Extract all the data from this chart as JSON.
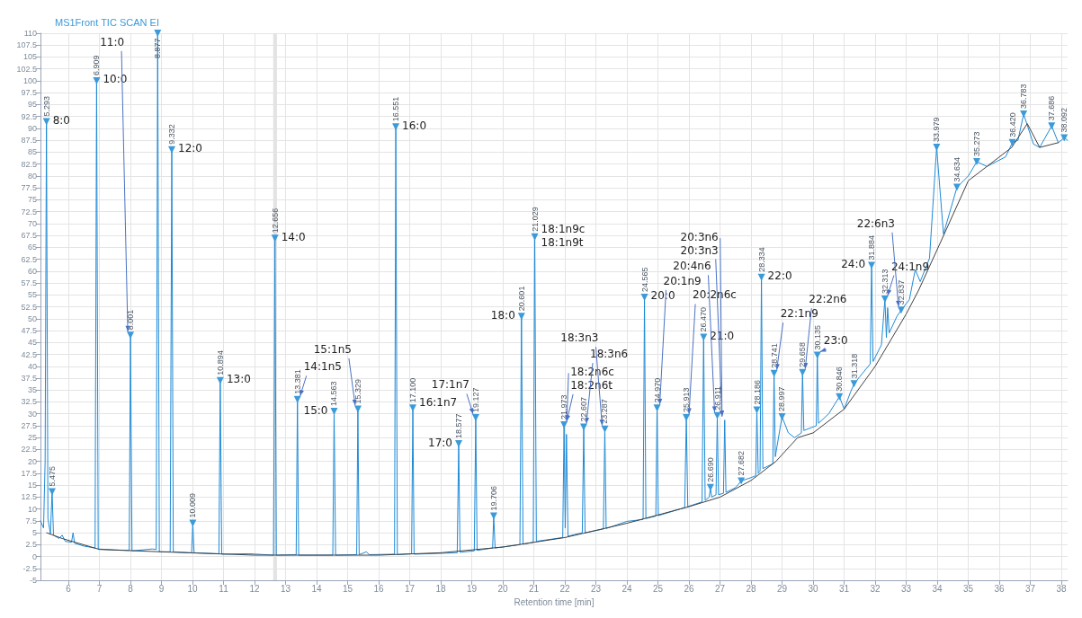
{
  "chart_data": {
    "type": "line",
    "title": "MS1Front TIC SCAN EI",
    "xlabel": "Retention time [min]",
    "xlim": [
      5.1,
      38.2
    ],
    "xticks": [
      6,
      7,
      8,
      9,
      10,
      11,
      12,
      13,
      14,
      15,
      16,
      17,
      18,
      19,
      20,
      21,
      22,
      23,
      24,
      25,
      26,
      27,
      28,
      29,
      30,
      31,
      32,
      33,
      34,
      35,
      36,
      37,
      38
    ],
    "ylim": [
      -5,
      110
    ],
    "yticks": [
      -5,
      -2.5,
      0,
      2.5,
      5,
      7.5,
      10,
      12.5,
      15,
      17.5,
      20,
      22.5,
      25,
      27.5,
      30,
      32.5,
      35,
      37.5,
      40,
      42.5,
      45,
      47.5,
      50,
      52.5,
      55,
      57.5,
      60,
      62.5,
      65,
      67.5,
      70,
      72.5,
      75,
      77.5,
      80,
      82.5,
      85,
      87.5,
      90,
      92.5,
      95,
      97.5,
      100,
      102.5,
      105,
      107.5,
      110
    ],
    "grid": true,
    "bands": [
      {
        "axis": "x",
        "from": 12.6,
        "to": 12.72,
        "color": "#e3e3e3"
      }
    ],
    "series": [
      {
        "color": "#1f8ad6",
        "marker": "none",
        "x": [
          5.1,
          5.2,
          5.25,
          5.293,
          5.34,
          5.42,
          5.475,
          5.52,
          5.7,
          5.8,
          5.9,
          6.1,
          6.15,
          6.2,
          6.5,
          6.86,
          6.909,
          6.96,
          7.5,
          7.96,
          8.001,
          8.05,
          8.7,
          8.83,
          8.877,
          8.93,
          9.28,
          9.332,
          9.38,
          9.97,
          10.009,
          10.05,
          10.85,
          10.894,
          10.94,
          11.8,
          12.61,
          12.656,
          12.7,
          13.34,
          13.381,
          13.42,
          14.52,
          14.563,
          14.61,
          15.29,
          15.329,
          15.37,
          15.6,
          15.7,
          16.51,
          16.551,
          16.6,
          17.06,
          17.1,
          17.14,
          18.53,
          18.577,
          18.62,
          19.08,
          19.127,
          19.17,
          19.67,
          19.706,
          19.75,
          20.55,
          20.601,
          20.65,
          20.98,
          21.029,
          21.08,
          21.93,
          21.973,
          22.01,
          22.05,
          22.1,
          22.56,
          22.607,
          22.65,
          23.24,
          23.287,
          23.33,
          24.0,
          24.52,
          24.565,
          24.61,
          24.93,
          24.97,
          25.01,
          25.86,
          25.913,
          25.96,
          26.42,
          26.47,
          26.52,
          26.65,
          26.69,
          26.73,
          26.87,
          26.911,
          26.95,
          27.11,
          27.15,
          27.19,
          27.5,
          27.682,
          28.0,
          28.15,
          28.186,
          28.23,
          28.29,
          28.334,
          28.38,
          28.7,
          28.741,
          28.78,
          28.997,
          29.2,
          29.4,
          29.62,
          29.658,
          29.7,
          30.1,
          30.135,
          30.17,
          30.5,
          30.846,
          31.0,
          31.2,
          31.318,
          31.5,
          31.84,
          31.884,
          31.93,
          32.2,
          32.313,
          32.36,
          32.4,
          32.45,
          32.7,
          32.837,
          33.1,
          33.29,
          33.45,
          33.75,
          33.979,
          34.2,
          34.634,
          35.0,
          35.273,
          35.6,
          36.2,
          36.42,
          36.6,
          36.783,
          37.1,
          37.3,
          37.686,
          37.9,
          38.092,
          38.2
        ],
        "values": [
          7.5,
          6,
          20,
          91.4,
          8,
          4.8,
          13.6,
          4.5,
          3.8,
          4.5,
          3.2,
          3,
          5,
          2.8,
          2.2,
          1.8,
          100,
          1.6,
          1.4,
          1.3,
          46.5,
          1.2,
          1.6,
          1.5,
          110,
          1,
          1,
          85.5,
          1,
          0.8,
          7,
          0.8,
          0.6,
          37,
          0.5,
          0.6,
          0.3,
          66.9,
          0.3,
          0.4,
          33,
          0.3,
          0.3,
          30.5,
          0.3,
          0.4,
          31,
          0.4,
          1,
          0.4,
          0.5,
          90.3,
          0.4,
          0.6,
          31.2,
          0.5,
          0.8,
          23.7,
          0.9,
          1.2,
          29.2,
          1.3,
          1.8,
          8.5,
          1.8,
          2.5,
          50.5,
          2.6,
          3,
          67.2,
          3.2,
          4,
          27.7,
          6,
          25.7,
          4.3,
          5,
          27.2,
          5,
          5.8,
          26.8,
          5.9,
          7.4,
          7.8,
          54.5,
          8,
          8.5,
          31.2,
          8.6,
          10.3,
          29.2,
          10.5,
          11.5,
          46.1,
          11.8,
          12.5,
          14.5,
          12.5,
          13,
          29.6,
          13,
          13.3,
          28.7,
          13.5,
          14.5,
          15.9,
          16.6,
          17,
          30.8,
          17.5,
          18,
          58.7,
          18.5,
          19.5,
          38.5,
          21,
          29.4,
          26,
          25,
          26,
          38.7,
          26.5,
          27.5,
          42.3,
          28,
          30,
          33.6,
          31,
          34.5,
          36.3,
          37.8,
          40.5,
          61.2,
          41,
          44.5,
          54.1,
          46,
          52.3,
          47,
          50.5,
          51.8,
          54,
          60.3,
          57.8,
          62.7,
          86,
          67.8,
          77.6,
          80,
          83,
          82,
          84,
          87,
          87.5,
          93,
          86.7,
          86,
          90.5,
          87,
          88,
          87.5
        ]
      },
      {
        "color": "#404040",
        "marker": "none",
        "x": [
          5.3,
          5.8,
          7,
          9,
          12,
          16,
          18,
          20,
          22,
          24,
          26,
          27,
          28,
          28.8,
          29.5,
          30,
          31,
          32,
          33,
          33.4,
          34.1,
          35,
          36.4,
          36.9,
          37.3,
          37.9
        ],
        "values": [
          5,
          3.8,
          1.5,
          1,
          0.3,
          0.3,
          0.8,
          2,
          4,
          7,
          10.5,
          12.5,
          16,
          20,
          25,
          26,
          31,
          40,
          51,
          56,
          66,
          79,
          86,
          91,
          86,
          87
        ]
      },
      {
        "type": "scatter",
        "color": "#3b9ad9",
        "marker": "triangle",
        "x": [
          5.293,
          5.475,
          6.909,
          8.001,
          8.877,
          9.332,
          10.009,
          10.894,
          12.656,
          13.381,
          14.563,
          15.329,
          16.551,
          17.1,
          18.577,
          19.127,
          19.706,
          20.601,
          21.029,
          21.973,
          22.607,
          23.287,
          24.565,
          24.97,
          25.913,
          26.47,
          26.69,
          26.911,
          27.682,
          28.186,
          28.334,
          28.741,
          28.997,
          29.658,
          30.135,
          30.846,
          31.318,
          31.884,
          32.313,
          32.837,
          33.979,
          34.634,
          35.273,
          36.42,
          36.783,
          37.686,
          38.092
        ],
        "values": [
          91.4,
          13.6,
          100,
          46.5,
          110,
          85.5,
          7,
          37,
          66.9,
          33,
          30.5,
          31,
          90.3,
          31.2,
          23.7,
          29.2,
          8.5,
          50.5,
          67.2,
          27.7,
          27.2,
          26.8,
          54.5,
          31.2,
          29.2,
          46.1,
          14.5,
          29.6,
          15.9,
          30.8,
          58.7,
          38.5,
          29.4,
          38.7,
          42.3,
          33.6,
          36.3,
          61.2,
          54.1,
          51.8,
          86,
          77.6,
          83,
          87,
          93,
          90.5,
          88
        ]
      }
    ],
    "annotations": [
      {
        "text": "5.293",
        "x": 5.293,
        "y": 91.4
      },
      {
        "text": "8:0",
        "x": 5.293,
        "y": 91.4
      },
      {
        "text": "5.475",
        "x": 5.475,
        "y": 13.6
      },
      {
        "text": "6.909",
        "x": 6.909,
        "y": 100
      },
      {
        "text": "10:0",
        "x": 6.909,
        "y": 100
      },
      {
        "text": "8.001",
        "x": 8.001,
        "y": 46.5
      },
      {
        "text": "11:0",
        "x": 8.001,
        "y": 46.5
      },
      {
        "text": "8.877",
        "x": 8.877,
        "y": 110
      },
      {
        "text": "9.332",
        "x": 9.332,
        "y": 85.5
      },
      {
        "text": "12:0",
        "x": 9.332,
        "y": 85.5
      },
      {
        "text": "10.009",
        "x": 10.009,
        "y": 7
      },
      {
        "text": "10.894",
        "x": 10.894,
        "y": 37
      },
      {
        "text": "13:0",
        "x": 10.894,
        "y": 37
      },
      {
        "text": "12.656",
        "x": 12.656,
        "y": 66.9
      },
      {
        "text": "14:0",
        "x": 12.656,
        "y": 66.9
      },
      {
        "text": "13.381",
        "x": 13.381,
        "y": 33
      },
      {
        "text": "14:1n5",
        "x": 13.381,
        "y": 33
      },
      {
        "text": "14.563",
        "x": 14.563,
        "y": 30.5
      },
      {
        "text": "15:0",
        "x": 14.563,
        "y": 30.5
      },
      {
        "text": "15.329",
        "x": 15.329,
        "y": 31
      },
      {
        "text": "15:1n5",
        "x": 15.329,
        "y": 31
      },
      {
        "text": "16.551",
        "x": 16.551,
        "y": 90.3
      },
      {
        "text": "16:0",
        "x": 16.551,
        "y": 90.3
      },
      {
        "text": "17.100",
        "x": 17.1,
        "y": 31.2
      },
      {
        "text": "16:1n7",
        "x": 17.1,
        "y": 31.2
      },
      {
        "text": "18.577",
        "x": 18.577,
        "y": 23.7
      },
      {
        "text": "17:0",
        "x": 18.577,
        "y": 23.7
      },
      {
        "text": "19.127",
        "x": 19.127,
        "y": 29.2
      },
      {
        "text": "17:1n7",
        "x": 19.127,
        "y": 29.2
      },
      {
        "text": "19.706",
        "x": 19.706,
        "y": 8.5
      },
      {
        "text": "20.601",
        "x": 20.601,
        "y": 50.5
      },
      {
        "text": "18:0",
        "x": 20.601,
        "y": 50.5
      },
      {
        "text": "21.029",
        "x": 21.029,
        "y": 67.2
      },
      {
        "text": "18:1n9c",
        "x": 21.029,
        "y": 67.2
      },
      {
        "text": "18:1n9t",
        "x": 21.029,
        "y": 67.2
      },
      {
        "text": "21.973",
        "x": 21.973,
        "y": 27.7
      },
      {
        "text": "18:2n6c",
        "x": 21.973,
        "y": 27.7
      },
      {
        "text": "18:2n6t",
        "x": 21.973,
        "y": 27.7
      },
      {
        "text": "22.607",
        "x": 22.607,
        "y": 27.2
      },
      {
        "text": "18:3n6",
        "x": 22.607,
        "y": 27.2
      },
      {
        "text": "23.287",
        "x": 23.287,
        "y": 26.8
      },
      {
        "text": "18:3n3",
        "x": 23.287,
        "y": 26.8
      },
      {
        "text": "24.565",
        "x": 24.565,
        "y": 54.5
      },
      {
        "text": "20:0",
        "x": 24.565,
        "y": 54.5
      },
      {
        "text": "24.970",
        "x": 24.97,
        "y": 31.2
      },
      {
        "text": "20:1n9",
        "x": 24.97,
        "y": 31.2
      },
      {
        "text": "25.913",
        "x": 25.913,
        "y": 29.2
      },
      {
        "text": "20:2n6c",
        "x": 25.913,
        "y": 29.2
      },
      {
        "text": "26.470",
        "x": 26.47,
        "y": 46.1
      },
      {
        "text": "21:0",
        "x": 26.47,
        "y": 46.1
      },
      {
        "text": "26.690",
        "x": 26.69,
        "y": 14.5
      },
      {
        "text": "26.911",
        "x": 26.911,
        "y": 29.6
      },
      {
        "text": "20:4n6",
        "x": 26.911,
        "y": 29.6
      },
      {
        "text": "20:3n6",
        "x": 27.15,
        "y": 28.7
      },
      {
        "text": "20:3n3",
        "x": 27.15,
        "y": 28.7
      },
      {
        "text": "27.682",
        "x": 27.682,
        "y": 15.9
      },
      {
        "text": "28.186",
        "x": 28.186,
        "y": 30.8
      },
      {
        "text": "28.334",
        "x": 28.334,
        "y": 58.7
      },
      {
        "text": "22:0",
        "x": 28.334,
        "y": 58.7
      },
      {
        "text": "28.741",
        "x": 28.741,
        "y": 38.5
      },
      {
        "text": "22:1n9",
        "x": 28.741,
        "y": 38.5
      },
      {
        "text": "28.997",
        "x": 28.997,
        "y": 29.4
      },
      {
        "text": "29.658",
        "x": 29.658,
        "y": 38.7
      },
      {
        "text": "22:2n6",
        "x": 29.658,
        "y": 38.7
      },
      {
        "text": "30.135",
        "x": 30.135,
        "y": 42.3
      },
      {
        "text": "23:0",
        "x": 30.135,
        "y": 42.3
      },
      {
        "text": "30.846",
        "x": 30.846,
        "y": 33.6
      },
      {
        "text": "31.318",
        "x": 31.318,
        "y": 36.3
      },
      {
        "text": "31.884",
        "x": 31.884,
        "y": 61.2
      },
      {
        "text": "24:0",
        "x": 31.884,
        "y": 61.2
      },
      {
        "text": "32.313",
        "x": 32.313,
        "y": 54.1
      },
      {
        "text": "24:1n9",
        "x": 32.313,
        "y": 54.1
      },
      {
        "text": "32.837",
        "x": 32.837,
        "y": 51.8
      },
      {
        "text": "22:6n3",
        "x": 32.837,
        "y": 51.8
      },
      {
        "text": "33.979",
        "x": 33.979,
        "y": 86
      },
      {
        "text": "34.634",
        "x": 34.634,
        "y": 77.6
      },
      {
        "text": "35.273",
        "x": 35.273,
        "y": 83
      },
      {
        "text": "36.420",
        "x": 36.42,
        "y": 87
      },
      {
        "text": "36.783",
        "x": 36.783,
        "y": 93
      },
      {
        "text": "37.686",
        "x": 37.686,
        "y": 90.5
      },
      {
        "text": "38.092",
        "x": 38.092,
        "y": 88
      }
    ]
  }
}
